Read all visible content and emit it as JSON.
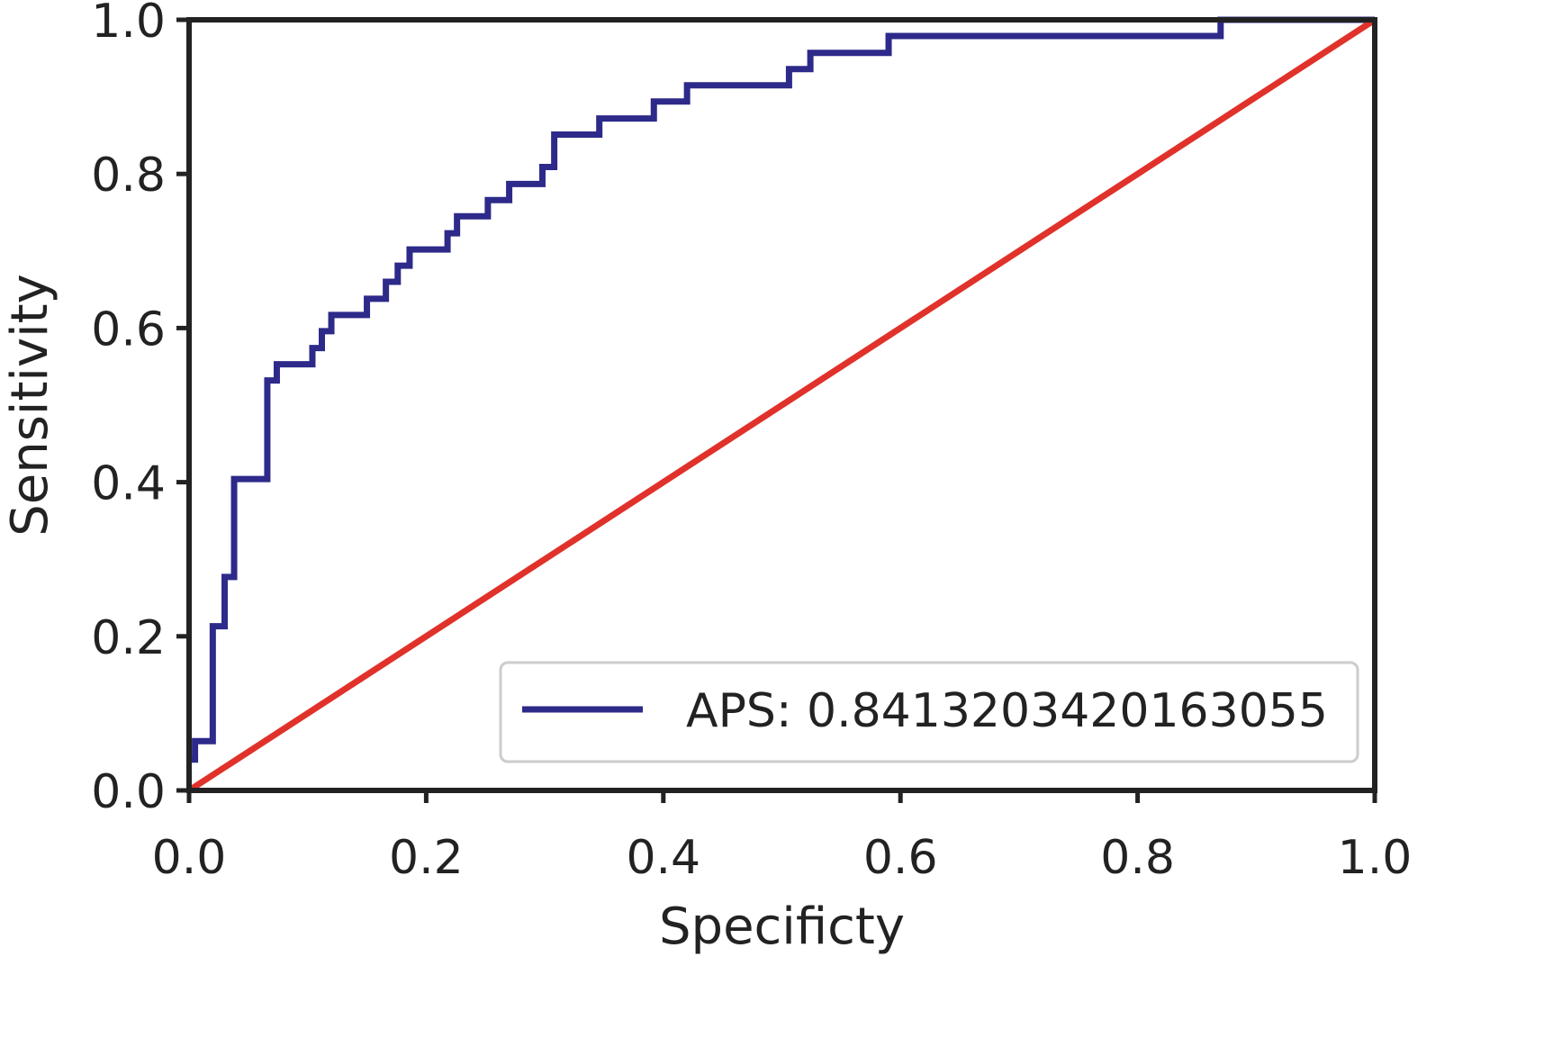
{
  "chart_data": {
    "type": "line",
    "title": "",
    "xlabel": "Specificty",
    "ylabel": "Sensitivity",
    "xlim": [
      0.0,
      1.0
    ],
    "ylim": [
      0.0,
      1.0
    ],
    "xticks": [
      "0.0",
      "0.2",
      "0.4",
      "0.6",
      "0.8",
      "1.0"
    ],
    "yticks": [
      "0.0",
      "0.2",
      "0.4",
      "0.6",
      "0.8",
      "1.0"
    ],
    "grid": false,
    "legend": {
      "placement": "lower-right",
      "entries": [
        "APS: 0.8413203420163055"
      ]
    },
    "series": [
      {
        "name": "APS: 0.8413203420163055",
        "color": "#2d2a8a",
        "kind": "step",
        "points": [
          [
            0.0,
            0.04
          ],
          [
            0.005,
            0.04
          ],
          [
            0.005,
            0.064
          ],
          [
            0.02,
            0.064
          ],
          [
            0.02,
            0.213
          ],
          [
            0.03,
            0.213
          ],
          [
            0.03,
            0.277
          ],
          [
            0.038,
            0.277
          ],
          [
            0.038,
            0.404
          ],
          [
            0.066,
            0.404
          ],
          [
            0.066,
            0.532
          ],
          [
            0.074,
            0.532
          ],
          [
            0.074,
            0.553
          ],
          [
            0.104,
            0.553
          ],
          [
            0.104,
            0.574
          ],
          [
            0.112,
            0.574
          ],
          [
            0.112,
            0.596
          ],
          [
            0.12,
            0.596
          ],
          [
            0.12,
            0.617
          ],
          [
            0.15,
            0.617
          ],
          [
            0.15,
            0.638
          ],
          [
            0.166,
            0.638
          ],
          [
            0.166,
            0.66
          ],
          [
            0.176,
            0.66
          ],
          [
            0.176,
            0.681
          ],
          [
            0.186,
            0.681
          ],
          [
            0.186,
            0.702
          ],
          [
            0.218,
            0.702
          ],
          [
            0.218,
            0.723
          ],
          [
            0.226,
            0.723
          ],
          [
            0.226,
            0.745
          ],
          [
            0.252,
            0.745
          ],
          [
            0.252,
            0.766
          ],
          [
            0.27,
            0.766
          ],
          [
            0.27,
            0.787
          ],
          [
            0.298,
            0.787
          ],
          [
            0.298,
            0.809
          ],
          [
            0.308,
            0.809
          ],
          [
            0.308,
            0.851
          ],
          [
            0.346,
            0.851
          ],
          [
            0.346,
            0.872
          ],
          [
            0.392,
            0.872
          ],
          [
            0.392,
            0.894
          ],
          [
            0.42,
            0.894
          ],
          [
            0.42,
            0.915
          ],
          [
            0.506,
            0.915
          ],
          [
            0.506,
            0.936
          ],
          [
            0.524,
            0.936
          ],
          [
            0.524,
            0.957
          ],
          [
            0.59,
            0.957
          ],
          [
            0.59,
            0.979
          ],
          [
            0.87,
            0.979
          ],
          [
            0.87,
            1.0
          ],
          [
            1.0,
            1.0
          ]
        ]
      },
      {
        "name": "",
        "color": "#e0322a",
        "kind": "line",
        "points": [
          [
            0.0,
            0.0
          ],
          [
            1.0,
            1.0
          ]
        ]
      }
    ]
  }
}
